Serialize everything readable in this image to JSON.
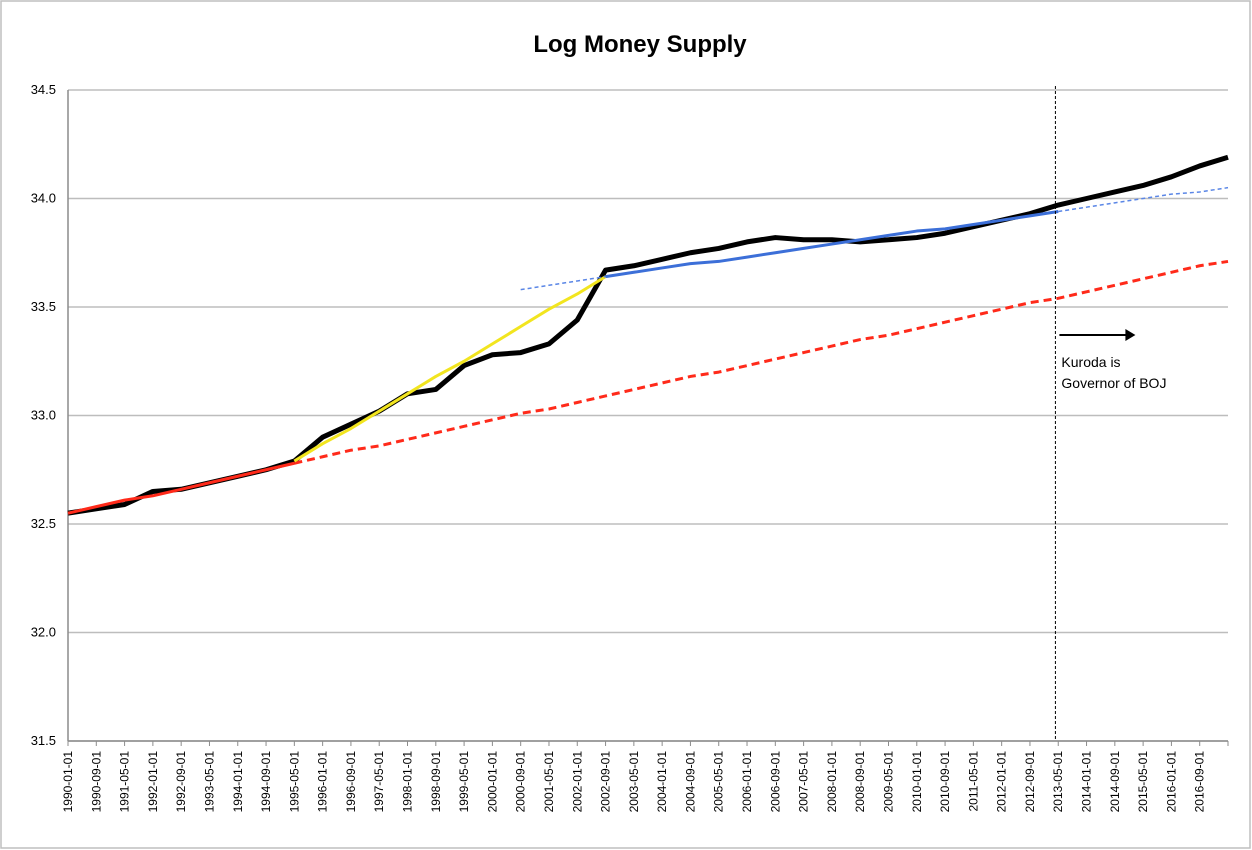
{
  "chart_data": {
    "type": "line",
    "title": "Log Money Supply",
    "categories": [
      "1990-01-01",
      "1990-09-01",
      "1991-05-01",
      "1992-01-01",
      "1992-09-01",
      "1993-05-01",
      "1994-01-01",
      "1994-09-01",
      "1995-05-01",
      "1996-01-01",
      "1996-09-01",
      "1997-05-01",
      "1998-01-01",
      "1998-09-01",
      "1999-05-01",
      "2000-01-01",
      "2000-09-01",
      "2001-05-01",
      "2002-01-01",
      "2002-09-01",
      "2003-05-01",
      "2004-01-01",
      "2004-09-01",
      "2005-05-01",
      "2006-01-01",
      "2006-09-01",
      "2007-05-01",
      "2008-01-01",
      "2008-09-01",
      "2009-05-01",
      "2010-01-01",
      "2010-09-01",
      "2011-05-01",
      "2012-01-01",
      "2012-09-01",
      "2013-05-01",
      "2014-01-01",
      "2014-09-01",
      "2015-05-01",
      "2016-01-01",
      "2016-09-01",
      null
    ],
    "series": [
      {
        "color": "#000000",
        "width": 5,
        "dashed": false,
        "values": [
          32.55,
          32.57,
          32.59,
          32.65,
          32.66,
          32.69,
          32.72,
          32.75,
          32.79,
          32.9,
          32.96,
          33.02,
          33.1,
          33.12,
          33.23,
          33.28,
          33.29,
          33.33,
          33.44,
          33.67,
          33.69,
          33.72,
          33.75,
          33.77,
          33.8,
          33.82,
          33.81,
          33.81,
          33.8,
          33.81,
          33.82,
          33.84,
          33.87,
          33.9,
          33.93,
          33.97,
          34.0,
          34.03,
          34.06,
          34.1,
          34.15,
          34.19
        ]
      },
      {
        "color": "#ff2a1a",
        "width": 3,
        "dashed": false,
        "values": [
          32.55,
          32.58,
          32.61,
          32.63,
          32.66,
          32.69,
          32.72,
          32.75,
          32.78,
          null,
          null,
          null,
          null,
          null,
          null,
          null,
          null,
          null,
          null,
          null,
          null,
          null,
          null,
          null,
          null,
          null,
          null,
          null,
          null,
          null,
          null,
          null,
          null,
          null,
          null,
          null,
          null,
          null,
          null,
          null,
          null,
          null
        ]
      },
      {
        "color": "#ff2a1a",
        "width": 3,
        "dashed": true,
        "values": [
          null,
          null,
          null,
          null,
          null,
          null,
          null,
          null,
          32.78,
          32.81,
          32.84,
          32.86,
          32.89,
          32.92,
          32.95,
          32.98,
          33.01,
          33.03,
          33.06,
          33.09,
          33.12,
          33.15,
          33.18,
          33.2,
          33.23,
          33.26,
          33.29,
          33.32,
          33.35,
          33.37,
          33.4,
          33.43,
          33.46,
          33.49,
          33.52,
          33.54,
          33.57,
          33.6,
          33.63,
          33.66,
          33.69,
          33.71
        ]
      },
      {
        "color": "#f2e51f",
        "width": 3,
        "dashed": false,
        "values": [
          null,
          null,
          null,
          null,
          null,
          null,
          null,
          null,
          32.79,
          32.87,
          32.94,
          33.02,
          33.1,
          33.18,
          33.25,
          33.33,
          33.41,
          33.49,
          33.56,
          33.64,
          null,
          null,
          null,
          null,
          null,
          null,
          null,
          null,
          null,
          null,
          null,
          null,
          null,
          null,
          null,
          null,
          null,
          null,
          null,
          null,
          null,
          null
        ]
      },
      {
        "color": "#3c6fd8",
        "width": 3,
        "dashed": false,
        "values": [
          null,
          null,
          null,
          null,
          null,
          null,
          null,
          null,
          null,
          null,
          null,
          null,
          null,
          null,
          null,
          null,
          null,
          null,
          null,
          33.64,
          33.66,
          33.68,
          33.7,
          33.71,
          33.73,
          33.75,
          33.77,
          33.79,
          33.81,
          33.83,
          33.85,
          33.86,
          33.88,
          33.9,
          33.92,
          33.94,
          null,
          null,
          null,
          null,
          null,
          null
        ]
      },
      {
        "color": "#5a86e6",
        "width": 1.5,
        "dashed": true,
        "values": [
          null,
          null,
          null,
          null,
          null,
          null,
          null,
          null,
          null,
          null,
          null,
          null,
          null,
          null,
          null,
          null,
          33.58,
          33.6,
          33.62,
          33.64,
          null,
          null,
          null,
          null,
          null,
          null,
          null,
          null,
          null,
          null,
          null,
          null,
          null,
          null,
          null,
          33.94,
          33.96,
          33.98,
          34.0,
          34.02,
          34.03,
          34.05
        ]
      }
    ],
    "ylim": [
      31.5,
      34.5
    ],
    "yticks": [
      31.5,
      {
        "value": 32,
        "label": "32.0"
      },
      32.5,
      {
        "value": 33,
        "label": "33.0"
      },
      33.5,
      {
        "value": 34,
        "label": "34.0"
      },
      34.5
    ],
    "grid": true,
    "annotation": {
      "category_index": 34.9,
      "lines": [
        "Kuroda is",
        "Governor of BOJ"
      ]
    }
  }
}
